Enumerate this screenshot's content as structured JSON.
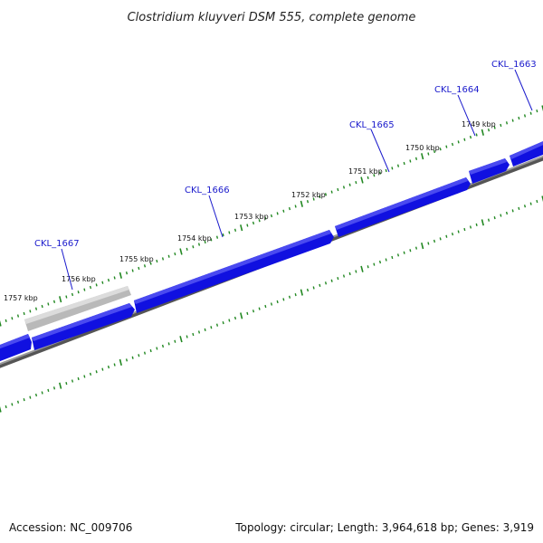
{
  "title": "Clostridium kluyveri DSM 555, complete genome",
  "accession_text": "Accession: NC_009706",
  "summary_text": "Topology: circular; Length: 3,964,618 bp; Genes: 3,919",
  "colors": {
    "gene": "#1010e0",
    "gene_highlight": "#bdbdbd",
    "backbone": "#808080",
    "ticks": "#228822",
    "gene_label": "#1a1acc"
  },
  "kbp_labels": [
    "1757 kbp",
    "1756 kbp",
    "1755 kbp",
    "1754 kbp",
    "1753 kbp",
    "1752 kbp",
    "1751 kbp",
    "1750 kbp",
    "1749 kbp"
  ],
  "gene_labels": [
    "CKL_1667",
    "CKL_1666",
    "CKL_1665",
    "CKL_1664",
    "CKL_1663"
  ]
}
